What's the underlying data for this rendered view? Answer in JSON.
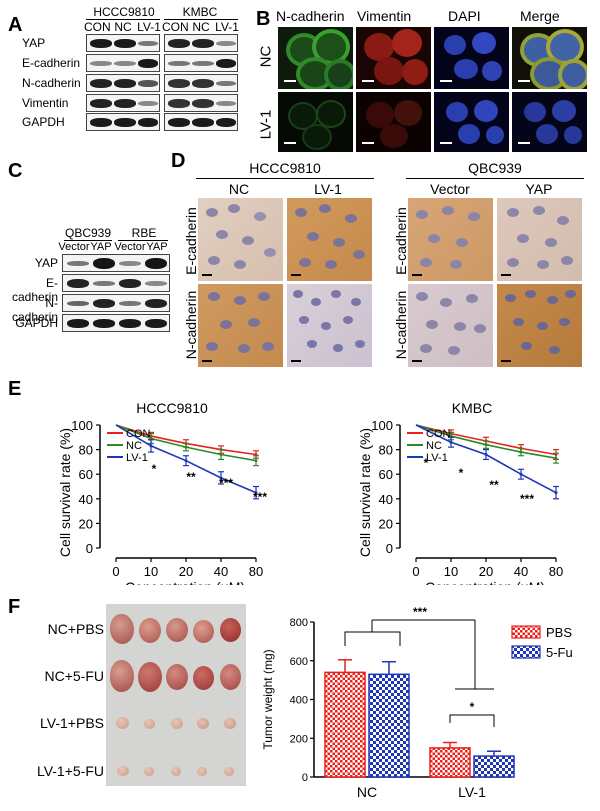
{
  "panels": {
    "A": "A",
    "B": "B",
    "C": "C",
    "D": "D",
    "E": "E",
    "F": "F"
  },
  "panelA": {
    "groups": [
      "HCCC9810",
      "KMBC"
    ],
    "lanes": [
      "CON",
      "NC",
      "LV-1"
    ],
    "rows": [
      "YAP",
      "E-cadherin",
      "N-cadherin",
      "Vimentin",
      "GAPDH"
    ]
  },
  "panelB": {
    "columns": [
      "N-cadherin",
      "Vimentin",
      "DAPI",
      "Merge"
    ],
    "rows": [
      "NC",
      "LV-1"
    ]
  },
  "panelC": {
    "groups": [
      "QBC939",
      "RBE"
    ],
    "lanes": [
      "Vector",
      "YAP",
      "Vector",
      "YAP"
    ],
    "rows": [
      "YAP",
      "E-cadherin",
      "N-cadherin",
      "GAPDH"
    ]
  },
  "panelD": {
    "left_group": "HCCC9810",
    "left_columns": [
      "NC",
      "LV-1"
    ],
    "right_group": "QBC939",
    "right_columns": [
      "Vector",
      "YAP"
    ],
    "rows": [
      "E-cadherin",
      "N-cadherin"
    ]
  },
  "colors": {
    "con": "#e8221b",
    "nc": "#2a8a2a",
    "lv1": "#1f35b8",
    "pbs": "#e8221b",
    "fu": "#1f35b8"
  },
  "chart_data": [
    {
      "type": "line",
      "title": "HCCC9810",
      "xlabel": "Concentration (μM)",
      "ylabel": "Cell survival rate (%)",
      "categories": [
        "0",
        "10",
        "20",
        "40",
        "80"
      ],
      "ylim": [
        0,
        100
      ],
      "yticks": [
        "0",
        "20",
        "40",
        "60",
        "80",
        "100"
      ],
      "series": [
        {
          "name": "CON",
          "values": [
            100,
            91,
            85,
            80,
            76
          ],
          "err": [
            0,
            3,
            3,
            3,
            3
          ]
        },
        {
          "name": "NC",
          "values": [
            100,
            89,
            82,
            76,
            71
          ],
          "err": [
            0,
            4,
            3,
            4,
            4
          ]
        },
        {
          "name": "LV-1",
          "values": [
            100,
            83,
            71,
            57,
            45
          ],
          "err": [
            0,
            5,
            4,
            5,
            5
          ]
        }
      ],
      "annotations": [
        "*",
        "**",
        "***"
      ]
    },
    {
      "type": "line",
      "title": "KMBC",
      "xlabel": "Concentration (μM)",
      "ylabel": "Cell survival rate (%)",
      "categories": [
        "0",
        "10",
        "20",
        "40",
        "80"
      ],
      "ylim": [
        0,
        100
      ],
      "yticks": [
        "0",
        "20",
        "40",
        "60",
        "80",
        "100"
      ],
      "series": [
        {
          "name": "CON",
          "values": [
            100,
            93,
            87,
            81,
            76
          ],
          "err": [
            0,
            3,
            3,
            3,
            4
          ]
        },
        {
          "name": "NC",
          "values": [
            100,
            91,
            84,
            78,
            73
          ],
          "err": [
            0,
            3,
            3,
            3,
            4
          ]
        },
        {
          "name": "LV-1",
          "values": [
            100,
            86,
            76,
            60,
            45
          ],
          "err": [
            0,
            4,
            4,
            4,
            5
          ]
        }
      ],
      "annotations": [
        "*",
        "*",
        "**",
        "***"
      ]
    },
    {
      "type": "bar",
      "xlabel": "",
      "ylabel": "Tumor weight (mg)",
      "categories": [
        "NC",
        "LV-1"
      ],
      "ylim": [
        0,
        800
      ],
      "yticks": [
        "0",
        "200",
        "400",
        "600",
        "800"
      ],
      "series": [
        {
          "name": "PBS",
          "values": [
            540,
            150
          ],
          "err": [
            65,
            28
          ]
        },
        {
          "name": "5-Fu",
          "values": [
            530,
            108
          ],
          "err": [
            65,
            25
          ]
        }
      ],
      "annotations": [
        "***",
        "*"
      ]
    }
  ],
  "panelF_photo": {
    "rows": [
      "NC+PBS",
      "NC+5-FU",
      "LV-1+PBS",
      "LV-1+5-FU"
    ]
  }
}
